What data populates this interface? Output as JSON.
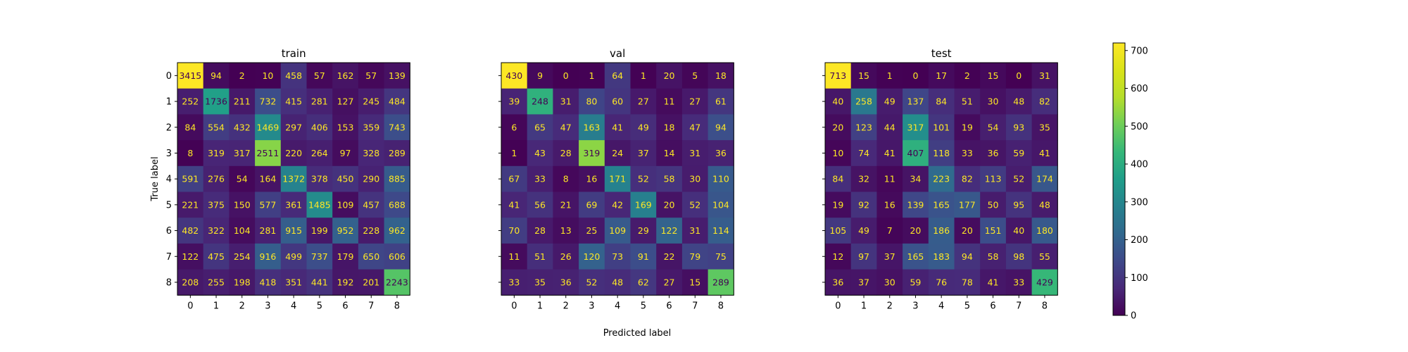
{
  "chart_data": {
    "type": "heatmap",
    "xlabel": "Predicted label",
    "ylabel": "True label",
    "labels": [
      "0",
      "1",
      "2",
      "3",
      "4",
      "5",
      "6",
      "7",
      "8"
    ],
    "colorbar": {
      "min": 0,
      "max": 720,
      "ticks": [
        0,
        100,
        200,
        300,
        400,
        500,
        600,
        700
      ]
    },
    "panels": [
      {
        "title": "train",
        "max": 3415,
        "matrix": [
          [
            3415,
            94,
            2,
            10,
            458,
            57,
            162,
            57,
            139
          ],
          [
            252,
            1736,
            211,
            732,
            415,
            281,
            127,
            245,
            484
          ],
          [
            84,
            554,
            432,
            1469,
            297,
            406,
            153,
            359,
            743
          ],
          [
            8,
            319,
            317,
            2511,
            220,
            264,
            97,
            328,
            289
          ],
          [
            591,
            276,
            54,
            164,
            1372,
            378,
            450,
            290,
            885
          ],
          [
            221,
            375,
            150,
            577,
            361,
            1485,
            109,
            457,
            688
          ],
          [
            482,
            322,
            104,
            281,
            915,
            199,
            952,
            228,
            962
          ],
          [
            122,
            475,
            254,
            916,
            499,
            737,
            179,
            650,
            606
          ],
          [
            208,
            255,
            198,
            418,
            351,
            441,
            192,
            201,
            2243
          ]
        ]
      },
      {
        "title": "val",
        "max": 430,
        "matrix": [
          [
            430,
            9,
            0,
            1,
            64,
            1,
            20,
            5,
            18
          ],
          [
            39,
            248,
            31,
            80,
            60,
            27,
            11,
            27,
            61
          ],
          [
            6,
            65,
            47,
            163,
            41,
            49,
            18,
            47,
            94
          ],
          [
            1,
            43,
            28,
            319,
            24,
            37,
            14,
            31,
            36
          ],
          [
            67,
            33,
            8,
            16,
            171,
            52,
            58,
            30,
            110
          ],
          [
            41,
            56,
            21,
            69,
            42,
            169,
            20,
            52,
            104
          ],
          [
            70,
            28,
            13,
            25,
            109,
            29,
            122,
            31,
            114
          ],
          [
            11,
            51,
            26,
            120,
            73,
            91,
            22,
            79,
            75
          ],
          [
            33,
            35,
            36,
            52,
            48,
            62,
            27,
            15,
            289
          ]
        ]
      },
      {
        "title": "test",
        "max": 713,
        "matrix": [
          [
            713,
            15,
            1,
            0,
            17,
            2,
            15,
            0,
            31
          ],
          [
            40,
            258,
            49,
            137,
            84,
            51,
            30,
            48,
            82
          ],
          [
            20,
            123,
            44,
            317,
            101,
            19,
            54,
            93,
            35
          ],
          [
            10,
            74,
            41,
            407,
            118,
            33,
            36,
            59,
            41
          ],
          [
            84,
            32,
            11,
            34,
            223,
            82,
            113,
            52,
            174
          ],
          [
            19,
            92,
            16,
            139,
            165,
            177,
            50,
            95,
            48
          ],
          [
            105,
            49,
            7,
            20,
            186,
            20,
            151,
            40,
            180
          ],
          [
            12,
            97,
            37,
            165,
            183,
            94,
            58,
            98,
            55
          ],
          [
            36,
            37,
            30,
            59,
            76,
            78,
            41,
            33,
            429
          ]
        ]
      }
    ]
  }
}
